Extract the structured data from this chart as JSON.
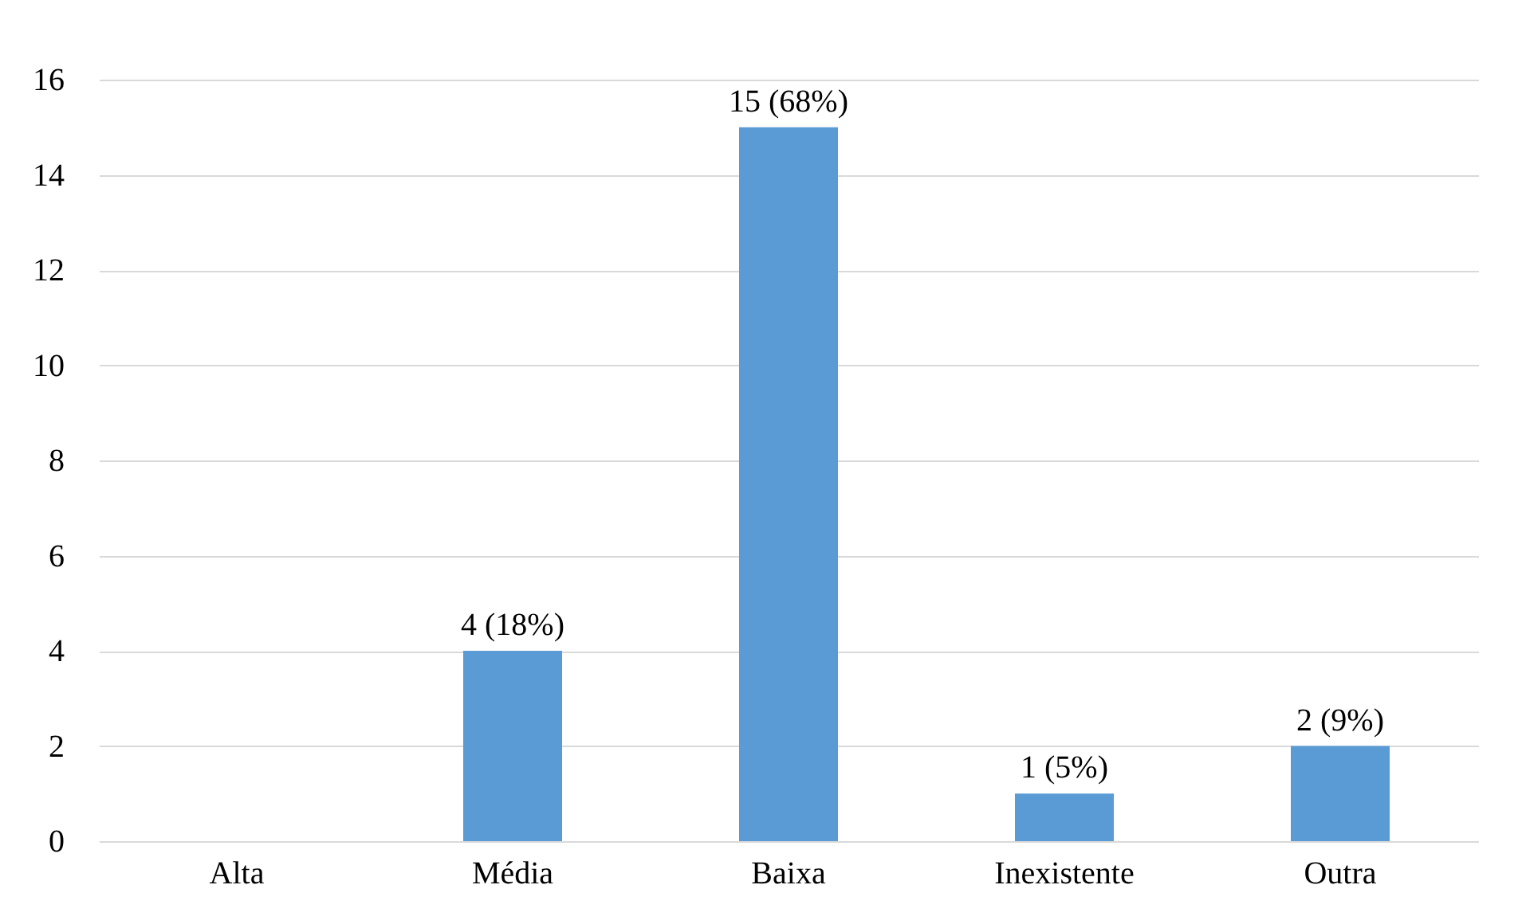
{
  "chart_data": {
    "type": "bar",
    "categories": [
      "Alta",
      "Média",
      "Baixa",
      "Inexistente",
      "Outra"
    ],
    "values": [
      0,
      4,
      15,
      1,
      2
    ],
    "color": "#5b9bd5",
    "value_labels": [
      null,
      "4 (18%)",
      "15 (68%)",
      "1 (5%)",
      "2 (9%)"
    ],
    "ylim": [
      0,
      16
    ],
    "yticks": [
      0,
      2,
      4,
      6,
      8,
      10,
      12,
      14,
      16
    ],
    "grid": "y"
  }
}
